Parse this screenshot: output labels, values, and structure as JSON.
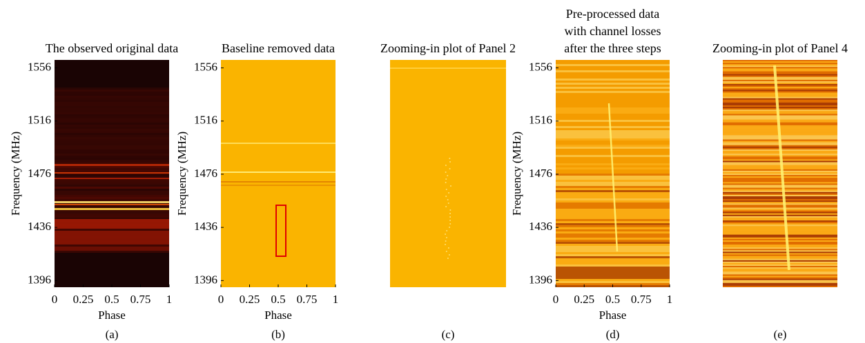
{
  "chart_data": [
    {
      "type": "heatmap",
      "title": [
        "The observed original data"
      ],
      "xlabel": "Phase",
      "ylabel": "Frequency (MHz)",
      "xlim": [
        0,
        1
      ],
      "ylim": [
        1391,
        1562
      ],
      "xticks": [
        0,
        0.25,
        0.5,
        0.75,
        1
      ],
      "yticks": [
        1396,
        1436,
        1476,
        1516,
        1556
      ],
      "caption": "(a)"
    },
    {
      "type": "heatmap",
      "title": [
        "Baseline removed data"
      ],
      "xlabel": "Phase",
      "ylabel": "Frequency (MHz)",
      "xlim": [
        0,
        1
      ],
      "ylim": [
        1391,
        1562
      ],
      "xticks": [
        0,
        0.25,
        0.5,
        0.75,
        1
      ],
      "yticks": [
        1396,
        1436,
        1476,
        1516,
        1556
      ],
      "caption": "(b)"
    },
    {
      "type": "heatmap",
      "title": [
        "Zooming-in plot of Panel 2"
      ],
      "caption": "(c)"
    },
    {
      "type": "heatmap",
      "title": [
        "Pre-processed data",
        "with channel losses",
        "after the three steps"
      ],
      "xlabel": "Phase",
      "ylabel": "Frequency (MHz)",
      "xlim": [
        0,
        1
      ],
      "ylim": [
        1391,
        1562
      ],
      "xticks": [
        0,
        0.25,
        0.5,
        0.75,
        1
      ],
      "yticks": [
        1396,
        1436,
        1476,
        1516,
        1556
      ],
      "caption": "(d)"
    },
    {
      "type": "heatmap",
      "title": [
        "Zooming-in plot of Panel 4"
      ],
      "caption": "(e)"
    }
  ]
}
